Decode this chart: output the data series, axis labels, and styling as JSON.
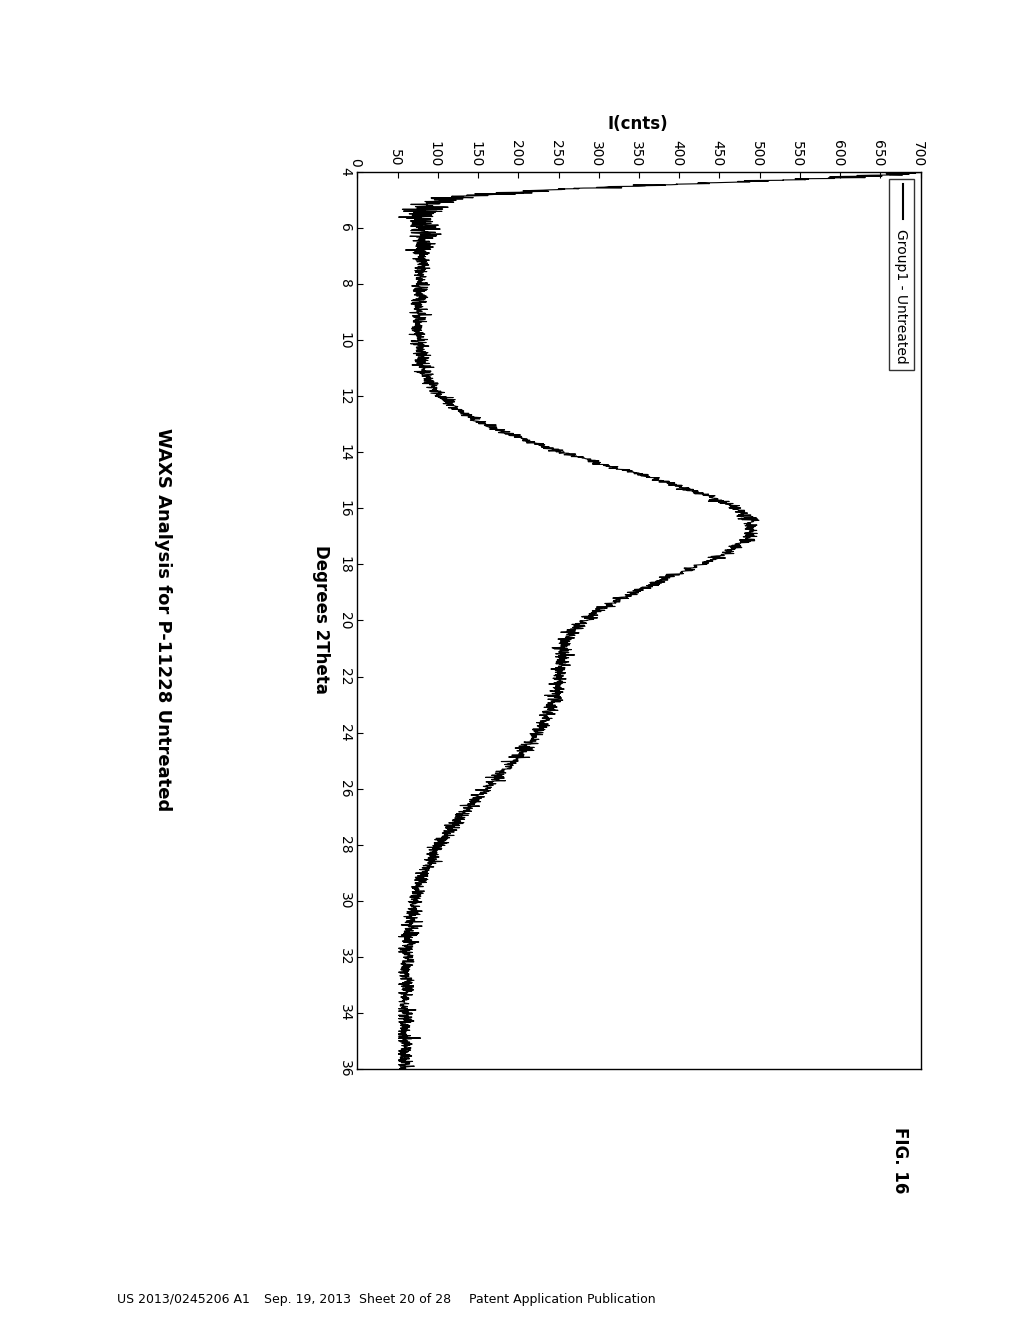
{
  "title": "WAXS Analysis for P-11228 Untreated",
  "xlabel": "I(cnts)",
  "ylabel": "Degrees 2Theta",
  "fig_label": "FIG. 16",
  "legend_label": "Group1 - Untreated",
  "x_ticks": [
    4,
    6,
    8,
    10,
    12,
    14,
    16,
    18,
    20,
    22,
    24,
    26,
    28,
    30,
    32,
    34,
    36
  ],
  "y_ticks": [
    0,
    50,
    100,
    150,
    200,
    250,
    300,
    350,
    400,
    450,
    500,
    550,
    600,
    650,
    700
  ],
  "xlim": [
    4,
    36
  ],
  "ylim": [
    0,
    700
  ],
  "background_color": "#ffffff",
  "line_color": "#000000",
  "title_fontsize": 13,
  "label_fontsize": 12,
  "tick_fontsize": 10,
  "header_left": "Patent Application Publication",
  "header_mid": "Sep. 19, 2013  Sheet 20 of 28",
  "header_right": "US 2013/0245206 A1"
}
